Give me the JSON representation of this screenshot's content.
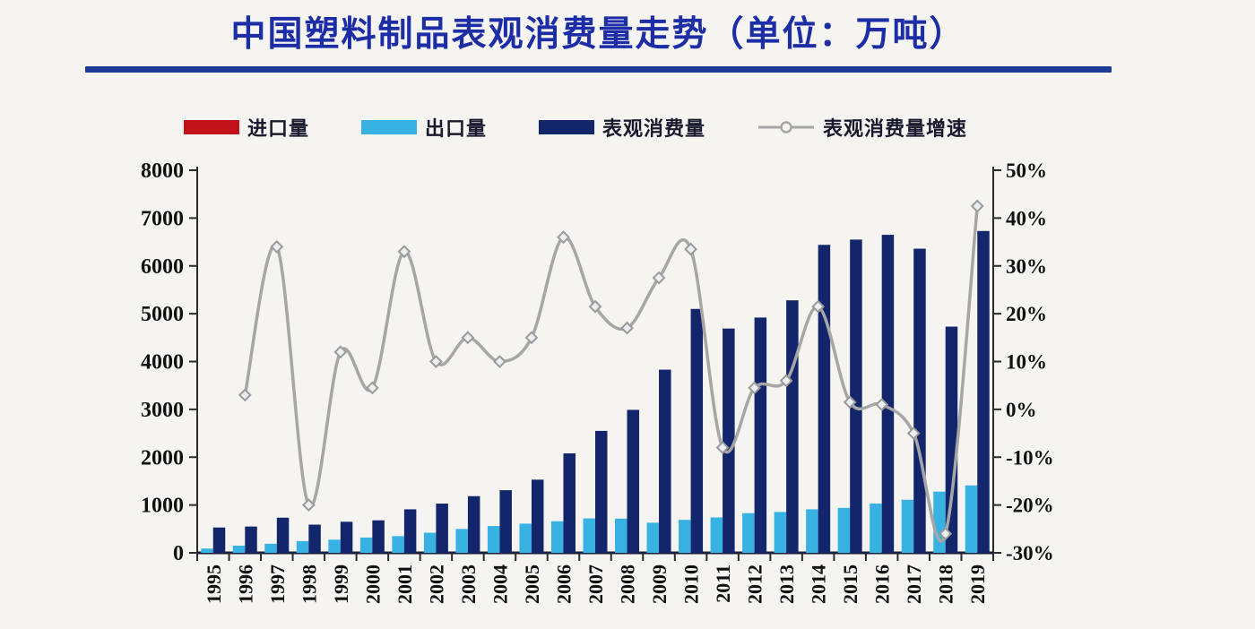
{
  "title": "中国塑料制品表观消费量走势（单位：万吨）",
  "legend": [
    {
      "label": "进口量",
      "type": "bar",
      "color": "#c3111a"
    },
    {
      "label": "出口量",
      "type": "bar",
      "color": "#38b1e3"
    },
    {
      "label": "表观消费量",
      "type": "bar",
      "color": "#14266b"
    },
    {
      "label": "表观消费量增速",
      "type": "line",
      "color": "#a6a6a6"
    }
  ],
  "chart_data": {
    "type": "combo-bar-line",
    "title": "中国塑料制品表观消费量走势（单位：万吨）",
    "unit": "万吨",
    "grid": false,
    "legend_position": "top",
    "categories": [
      "1995",
      "1996",
      "1997",
      "1998",
      "1999",
      "2000",
      "2001",
      "2002",
      "2003",
      "2004",
      "2005",
      "2006",
      "2007",
      "2008",
      "2009",
      "2010",
      "2011",
      "2012",
      "2013",
      "2014",
      "2015",
      "2016",
      "2017",
      "2018",
      "2019"
    ],
    "series": [
      {
        "key": "imports",
        "name": "进口量",
        "type": "bar",
        "axis": "left",
        "color": "#c3111a",
        "note": "bars are too small to be visible at this scale",
        "values": [
          0,
          0,
          0,
          0,
          0,
          0,
          0,
          0,
          0,
          0,
          0,
          0,
          0,
          0,
          0,
          0,
          0,
          0,
          0,
          0,
          0,
          0,
          0,
          0,
          0
        ]
      },
      {
        "key": "exports",
        "name": "出口量",
        "type": "bar",
        "axis": "left",
        "color": "#38b1e3",
        "values": [
          90,
          150,
          190,
          245,
          275,
          320,
          350,
          420,
          500,
          560,
          610,
          660,
          720,
          715,
          630,
          690,
          740,
          830,
          855,
          910,
          940,
          1030,
          1110,
          1280,
          1410
        ]
      },
      {
        "key": "consumption",
        "name": "表观消费量",
        "type": "bar",
        "axis": "left",
        "color": "#14266b",
        "values": [
          530,
          550,
          735,
          590,
          650,
          680,
          910,
          1030,
          1185,
          1310,
          1530,
          2080,
          2550,
          2990,
          3830,
          5100,
          4690,
          4920,
          5280,
          6440,
          6550,
          6650,
          6360,
          4730,
          6730
        ]
      },
      {
        "key": "growth",
        "name": "表观消费量增速",
        "type": "line",
        "axis": "right",
        "color": "#a6a6a6",
        "marker": "diamond",
        "values": [
          null,
          3,
          34,
          -20,
          12,
          4.5,
          33,
          10,
          15,
          10,
          15,
          36,
          21.5,
          17,
          27.5,
          33.5,
          -8,
          4.5,
          6,
          21.5,
          1.5,
          1,
          -5,
          -26,
          42.5
        ]
      }
    ],
    "left_axis": {
      "min": 0,
      "max": 8000,
      "tick_step": 1000,
      "tick_labels": [
        "0",
        "1000",
        "2000",
        "3000",
        "4000",
        "5000",
        "6000",
        "7000",
        "8000"
      ]
    },
    "right_axis": {
      "min": -30,
      "max": 50,
      "tick_step": 10,
      "tick_labels": [
        "50%",
        "40%",
        "30%",
        "20%",
        "10%",
        "0%",
        "-10%",
        "-20%",
        "-30%"
      ],
      "tick_values": [
        50,
        40,
        30,
        20,
        10,
        0,
        -10,
        -20,
        -30
      ]
    }
  }
}
